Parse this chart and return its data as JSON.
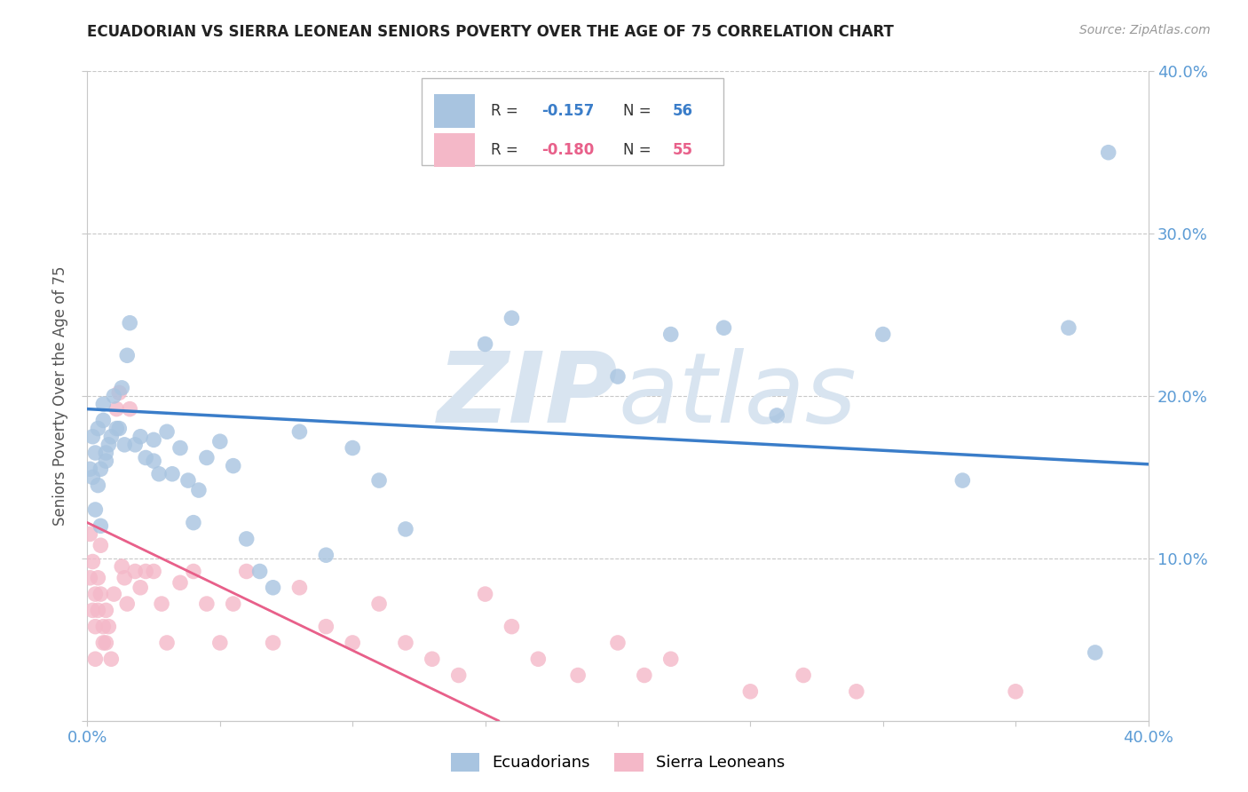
{
  "title": "ECUADORIAN VS SIERRA LEONEAN SENIORS POVERTY OVER THE AGE OF 75 CORRELATION CHART",
  "source": "Source: ZipAtlas.com",
  "ylabel": "Seniors Poverty Over the Age of 75",
  "x_min": 0.0,
  "x_max": 0.4,
  "y_min": 0.0,
  "y_max": 0.4,
  "grid_color": "#c8c8c8",
  "background_color": "#ffffff",
  "ecuadorian_color": "#a8c4e0",
  "ecuadorian_line_color": "#3a7dc9",
  "sierra_leonean_color": "#f4b8c8",
  "sierra_leonean_line_color": "#e8608a",
  "watermark_color": "#d8e4f0",
  "tick_label_color": "#5b9bd5",
  "axis_label_color": "#555555",
  "title_color": "#222222",
  "ecu_scatter_x": [
    0.001,
    0.002,
    0.002,
    0.003,
    0.003,
    0.004,
    0.004,
    0.005,
    0.005,
    0.006,
    0.006,
    0.007,
    0.007,
    0.008,
    0.009,
    0.01,
    0.011,
    0.012,
    0.013,
    0.014,
    0.015,
    0.016,
    0.018,
    0.02,
    0.022,
    0.025,
    0.025,
    0.027,
    0.03,
    0.032,
    0.035,
    0.038,
    0.04,
    0.042,
    0.045,
    0.05,
    0.055,
    0.06,
    0.065,
    0.07,
    0.08,
    0.09,
    0.1,
    0.11,
    0.12,
    0.15,
    0.16,
    0.2,
    0.22,
    0.24,
    0.26,
    0.3,
    0.33,
    0.37,
    0.38,
    0.385
  ],
  "ecu_scatter_y": [
    0.155,
    0.175,
    0.15,
    0.165,
    0.13,
    0.18,
    0.145,
    0.155,
    0.12,
    0.185,
    0.195,
    0.16,
    0.165,
    0.17,
    0.175,
    0.2,
    0.18,
    0.18,
    0.205,
    0.17,
    0.225,
    0.245,
    0.17,
    0.175,
    0.162,
    0.16,
    0.173,
    0.152,
    0.178,
    0.152,
    0.168,
    0.148,
    0.122,
    0.142,
    0.162,
    0.172,
    0.157,
    0.112,
    0.092,
    0.082,
    0.178,
    0.102,
    0.168,
    0.148,
    0.118,
    0.232,
    0.248,
    0.212,
    0.238,
    0.242,
    0.188,
    0.238,
    0.148,
    0.242,
    0.042,
    0.35
  ],
  "sl_scatter_x": [
    0.001,
    0.001,
    0.002,
    0.002,
    0.003,
    0.003,
    0.003,
    0.004,
    0.004,
    0.005,
    0.005,
    0.006,
    0.006,
    0.007,
    0.007,
    0.008,
    0.009,
    0.01,
    0.011,
    0.012,
    0.013,
    0.014,
    0.015,
    0.016,
    0.018,
    0.02,
    0.022,
    0.025,
    0.028,
    0.03,
    0.035,
    0.04,
    0.045,
    0.05,
    0.055,
    0.06,
    0.07,
    0.08,
    0.09,
    0.1,
    0.11,
    0.12,
    0.13,
    0.14,
    0.15,
    0.16,
    0.17,
    0.185,
    0.2,
    0.21,
    0.22,
    0.25,
    0.27,
    0.29,
    0.35
  ],
  "sl_scatter_y": [
    0.115,
    0.088,
    0.098,
    0.068,
    0.078,
    0.058,
    0.038,
    0.088,
    0.068,
    0.108,
    0.078,
    0.058,
    0.048,
    0.068,
    0.048,
    0.058,
    0.038,
    0.078,
    0.192,
    0.202,
    0.095,
    0.088,
    0.072,
    0.192,
    0.092,
    0.082,
    0.092,
    0.092,
    0.072,
    0.048,
    0.085,
    0.092,
    0.072,
    0.048,
    0.072,
    0.092,
    0.048,
    0.082,
    0.058,
    0.048,
    0.072,
    0.048,
    0.038,
    0.028,
    0.078,
    0.058,
    0.038,
    0.028,
    0.048,
    0.028,
    0.038,
    0.018,
    0.028,
    0.018,
    0.018
  ],
  "ecu_line_x": [
    0.0,
    0.4
  ],
  "ecu_line_y": [
    0.192,
    0.158
  ],
  "sl_line_x": [
    0.0,
    0.155
  ],
  "sl_line_y": [
    0.122,
    0.0
  ]
}
